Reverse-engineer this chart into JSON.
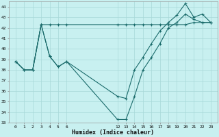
{
  "xlabel": "Humidex (Indice chaleur)",
  "bg_color": "#c8f0f0",
  "grid_color": "#a8d8d8",
  "line_color": "#1a6b6b",
  "ylim": [
    33,
    44.5
  ],
  "yticks": [
    33,
    34,
    35,
    36,
    37,
    38,
    39,
    40,
    41,
    42,
    43,
    44
  ],
  "x_ticks": [
    0,
    1,
    2,
    3,
    4,
    5,
    6,
    12,
    13,
    14,
    15,
    16,
    17,
    18,
    19,
    20,
    21,
    22,
    23
  ],
  "line1_x": [
    0,
    1,
    2,
    3,
    4,
    5,
    6,
    12,
    13,
    14,
    15,
    16,
    17,
    18,
    19,
    20,
    21,
    22,
    23
  ],
  "line1_y": [
    38.8,
    38.0,
    38.0,
    42.3,
    42.3,
    42.3,
    42.3,
    42.3,
    42.3,
    42.3,
    42.3,
    42.3,
    42.3,
    42.3,
    42.3,
    42.3,
    42.5,
    42.5,
    42.5
  ],
  "line2_x": [
    0,
    1,
    2,
    3,
    4,
    5,
    6,
    12,
    13,
    14,
    15,
    16,
    17,
    18,
    19,
    20,
    21,
    22,
    23
  ],
  "line2_y": [
    38.8,
    38.0,
    38.0,
    42.3,
    39.3,
    38.3,
    38.8,
    35.5,
    35.3,
    38.0,
    39.2,
    40.5,
    41.7,
    42.5,
    43.2,
    44.3,
    43.0,
    43.3,
    42.5
  ],
  "line3_x": [
    0,
    1,
    2,
    3,
    4,
    5,
    6,
    12,
    13,
    14,
    15,
    16,
    17,
    18,
    19,
    20,
    21,
    22,
    23
  ],
  "line3_y": [
    38.8,
    38.0,
    38.0,
    42.3,
    39.3,
    38.3,
    38.8,
    33.3,
    33.3,
    35.5,
    38.0,
    39.2,
    40.5,
    42.0,
    42.5,
    43.3,
    42.8,
    42.5,
    42.5
  ]
}
